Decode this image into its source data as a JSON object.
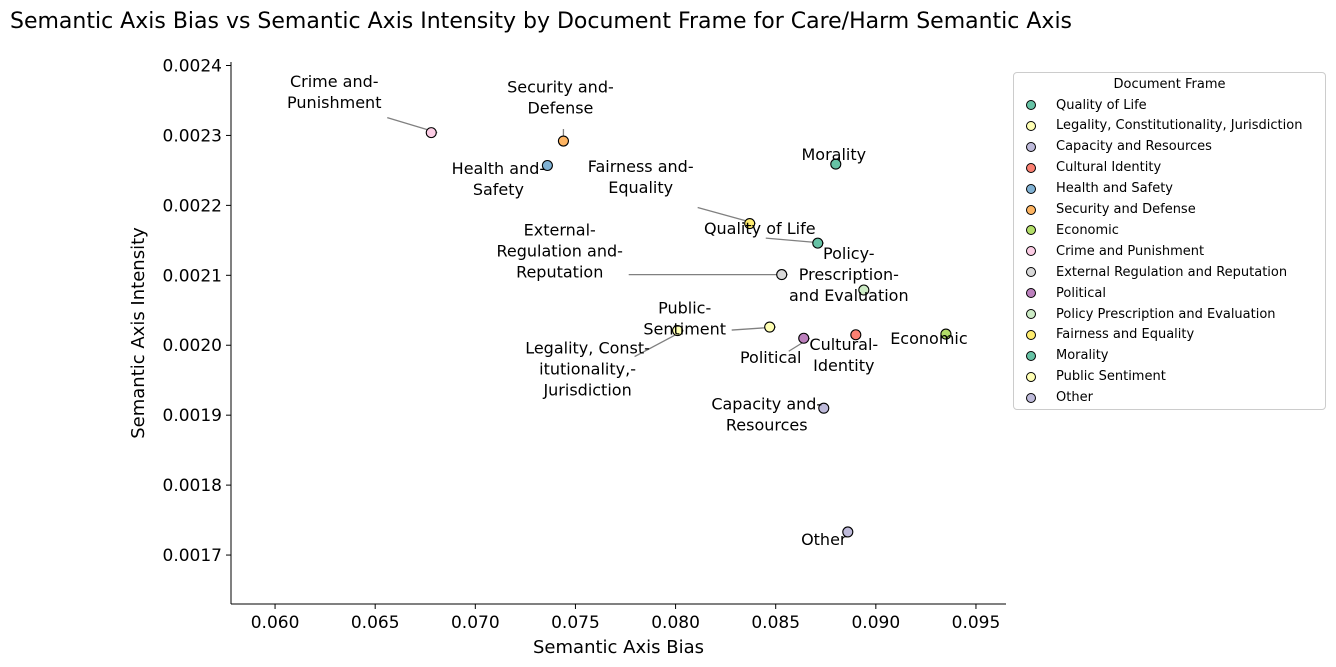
{
  "chart_data": {
    "type": "scatter",
    "title": "Semantic Axis Bias vs Semantic Axis Intensity by Document Frame for Care/Harm Semantic Axis",
    "xlabel": "Semantic Axis Bias",
    "ylabel": "Semantic Axis Intensity",
    "xlim": [
      0.0578,
      0.0965
    ],
    "ylim": [
      0.00163,
      0.002405
    ],
    "xticks": [
      "0.060",
      "0.065",
      "0.070",
      "0.075",
      "0.080",
      "0.085",
      "0.090",
      "0.095"
    ],
    "xtick_values": [
      0.06,
      0.065,
      0.07,
      0.075,
      0.08,
      0.085,
      0.09,
      0.095
    ],
    "yticks": [
      "0.0017",
      "0.0018",
      "0.0019",
      "0.0020",
      "0.0021",
      "0.0022",
      "0.0023",
      "0.0024"
    ],
    "ytick_values": [
      0.0017,
      0.0018,
      0.0019,
      0.002,
      0.0021,
      0.0022,
      0.0023,
      0.0024
    ],
    "grid": false,
    "legend_title": "Document Frame",
    "legend_position": "outside-right",
    "points": [
      {
        "name": "Quality of Life",
        "x": 0.0871,
        "y": 0.002146,
        "color": "#66c2a5",
        "label": [
          "Quality of Life"
        ]
      },
      {
        "name": "Legality, Constitutionality, Jurisdiction",
        "x": 0.0801,
        "y": 0.002021,
        "color": "#ffffb3",
        "label": [
          "Legality, Const-",
          "itutionality,-",
          "Jurisdiction"
        ]
      },
      {
        "name": "Capacity and Resources",
        "x": 0.0874,
        "y": 0.00191,
        "color": "#bebada",
        "label": [
          "Capacity and-",
          "Resources"
        ]
      },
      {
        "name": "Cultural Identity",
        "x": 0.089,
        "y": 0.002015,
        "color": "#fb8072",
        "label": [
          "Cultural-",
          "Identity"
        ]
      },
      {
        "name": "Health and Safety",
        "x": 0.0736,
        "y": 0.002257,
        "color": "#80b1d3",
        "label": [
          "Health and-",
          "Safety"
        ]
      },
      {
        "name": "Security and Defense",
        "x": 0.0744,
        "y": 0.002292,
        "color": "#fdb462",
        "label": [
          "Security and-",
          "Defense"
        ]
      },
      {
        "name": "Economic",
        "x": 0.0935,
        "y": 0.002016,
        "color": "#b3de69",
        "label": [
          "Economic"
        ]
      },
      {
        "name": "Crime and Punishment",
        "x": 0.0678,
        "y": 0.002304,
        "color": "#fccde5",
        "label": [
          "Crime and-",
          "Punishment"
        ]
      },
      {
        "name": "External Regulation and Reputation",
        "x": 0.0853,
        "y": 0.002101,
        "color": "#d9d9d9",
        "label": [
          "External-",
          "Regulation and-",
          "Reputation"
        ]
      },
      {
        "name": "Political",
        "x": 0.0864,
        "y": 0.00201,
        "color": "#bc80bd",
        "label": [
          "Political"
        ]
      },
      {
        "name": "Policy Prescription and Evaluation",
        "x": 0.0894,
        "y": 0.002079,
        "color": "#ccebc5",
        "label": [
          "Policy-",
          "Prescription-",
          "and Evaluation"
        ]
      },
      {
        "name": "Fairness and Equality",
        "x": 0.0837,
        "y": 0.002174,
        "color": "#ffed6f",
        "label": [
          "Fairness and-",
          "Equality"
        ]
      },
      {
        "name": "Morality",
        "x": 0.088,
        "y": 0.002259,
        "color": "#66c2a5",
        "label": [
          "Morality"
        ]
      },
      {
        "name": "Public Sentiment",
        "x": 0.0847,
        "y": 0.002026,
        "color": "#ffffb3",
        "label": [
          "Public-",
          "Sentiment"
        ]
      },
      {
        "name": "Other",
        "x": 0.0886,
        "y": 0.001733,
        "color": "#bebada",
        "label": [
          "Other"
        ]
      }
    ]
  }
}
